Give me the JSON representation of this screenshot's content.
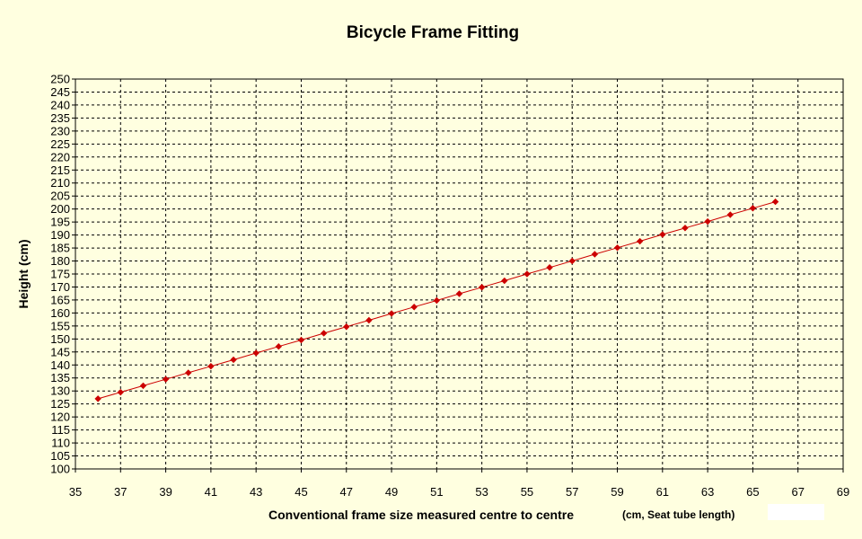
{
  "chart_data": {
    "type": "line",
    "title": "Bicycle Frame Fitting",
    "xlabel": "Conventional frame size measured centre to centre",
    "xlabel_note": "(cm, Seat tube length)",
    "ylabel": "Height (cm)",
    "xlim": [
      35,
      69
    ],
    "ylim": [
      100,
      250
    ],
    "x_ticks": [
      35,
      37,
      39,
      41,
      43,
      45,
      47,
      49,
      51,
      53,
      55,
      57,
      59,
      61,
      63,
      65,
      67,
      69
    ],
    "y_ticks": [
      100,
      105,
      110,
      115,
      120,
      125,
      130,
      135,
      140,
      145,
      150,
      155,
      160,
      165,
      170,
      175,
      180,
      185,
      190,
      195,
      200,
      205,
      210,
      215,
      220,
      225,
      230,
      235,
      240,
      245,
      250
    ],
    "grid": true,
    "grid_style": "dashed",
    "series": [
      {
        "color": "#cc0000",
        "marker": "diamond",
        "x": [
          36,
          37,
          38,
          39,
          40,
          41,
          42,
          43,
          44,
          45,
          46,
          47,
          48,
          49,
          50,
          51,
          52,
          53,
          54,
          55,
          56,
          57,
          58,
          59,
          60,
          61,
          62,
          63,
          64,
          65,
          66
        ],
        "y": [
          127,
          129.5,
          132,
          134.5,
          137,
          139.5,
          142,
          144.6,
          147.1,
          149.6,
          152.2,
          154.7,
          157.2,
          159.8,
          162.3,
          164.8,
          167.4,
          169.9,
          172.4,
          175,
          177.5,
          180,
          182.6,
          185.1,
          187.6,
          190.2,
          192.7,
          195.2,
          197.8,
          200.3,
          202.8
        ]
      }
    ]
  },
  "colors": {
    "background": "#ffffe0",
    "series": "#cc0000"
  }
}
